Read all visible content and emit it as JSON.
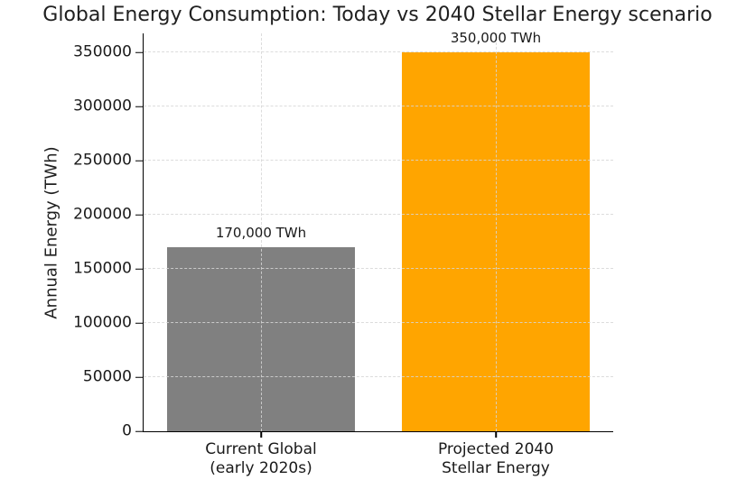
{
  "chart_data": {
    "type": "bar",
    "title": "Global Energy Consumption: Today vs 2040 Stellar Energy scenario",
    "xlabel": "",
    "ylabel": "Annual Energy (TWh)",
    "categories": [
      "Current Global\n(early 2020s)",
      "Projected 2040\nStellar Energy"
    ],
    "values": [
      170000,
      350000
    ],
    "bar_labels": [
      "170,000 TWh",
      "350,000 TWh"
    ],
    "bar_colors": [
      "#808080",
      "#FFA500"
    ],
    "yticks": [
      0,
      50000,
      100000,
      150000,
      200000,
      250000,
      300000,
      350000
    ],
    "ytick_labels": [
      "0",
      "50000",
      "100000",
      "150000",
      "200000",
      "250000",
      "300000",
      "350000"
    ],
    "ylim": [
      0,
      367500
    ],
    "bar_width_fraction": 0.4,
    "category_centers_pct": [
      25,
      75
    ],
    "grid": {
      "style": "dashed",
      "axes": "both",
      "drawn_above_bars": true,
      "color": "#d6d6d6"
    },
    "legend_position": "none",
    "colors": {
      "background": "#ffffff",
      "axis": "#000000",
      "text": "#1a1a1a"
    }
  }
}
